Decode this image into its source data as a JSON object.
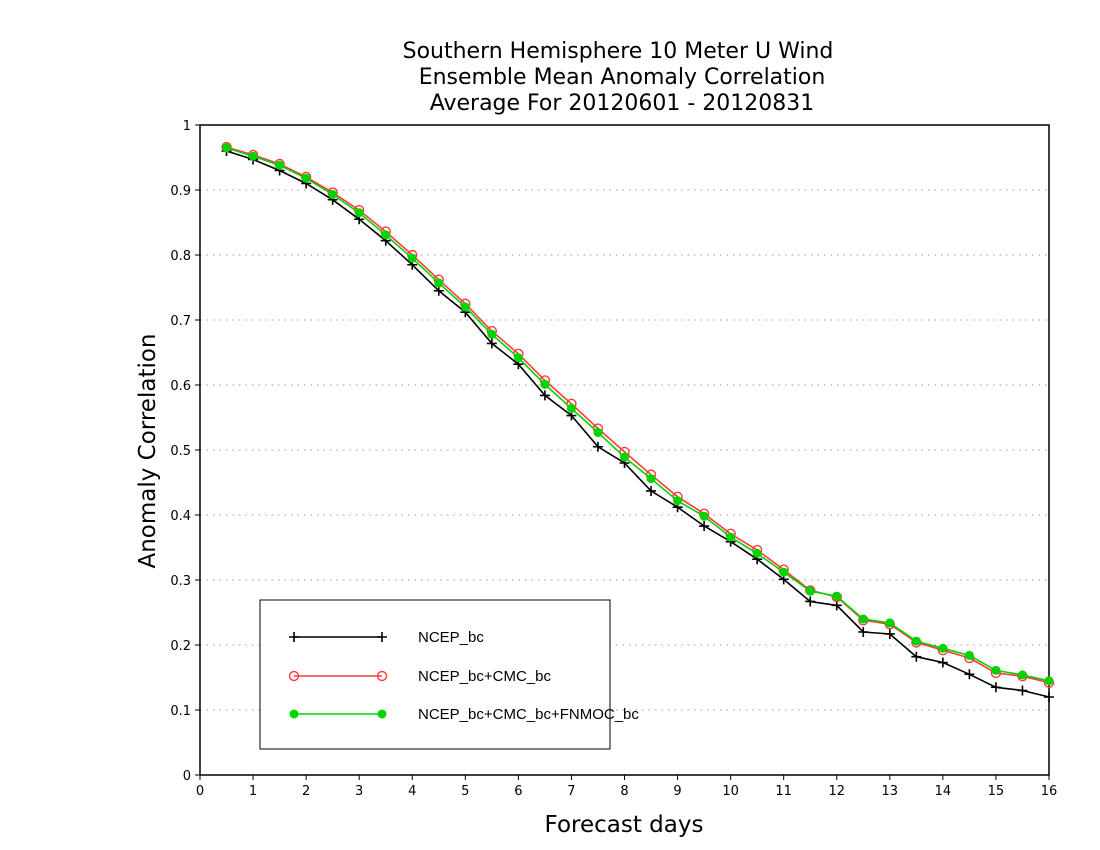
{
  "chart_data": {
    "type": "line",
    "title_lines": [
      "Southern Hemisphere 10 Meter U Wind",
      "Ensemble Mean Anomaly Correlation",
      "Average For 20120601 - 20120831"
    ],
    "xlabel": "Forecast days",
    "ylabel": "Anomaly Correlation",
    "xlim": [
      0,
      16
    ],
    "ylim": [
      0,
      1
    ],
    "x_ticks": [
      "0",
      "1",
      "2",
      "3",
      "4",
      "5",
      "6",
      "7",
      "8",
      "9",
      "10",
      "11",
      "12",
      "13",
      "14",
      "15",
      "16"
    ],
    "y_ticks": [
      "0",
      "0.1",
      "0.2",
      "0.3",
      "0.4",
      "0.5",
      "0.6",
      "0.7",
      "0.8",
      "0.9",
      "1"
    ],
    "grid": "dotted horizontal",
    "legend_position": "bottom-left",
    "x": [
      0.5,
      1,
      1.5,
      2,
      2.5,
      3,
      3.5,
      4,
      4.5,
      5,
      5.5,
      6,
      6.5,
      7,
      7.5,
      8,
      8.5,
      9,
      9.5,
      10,
      10.5,
      11,
      11.5,
      12,
      12.5,
      13,
      13.5,
      14,
      14.5,
      15,
      15.5,
      16
    ],
    "series": [
      {
        "name": "NCEP_bc",
        "color": "#000000",
        "marker": "plus",
        "values": [
          0.96,
          0.947,
          0.93,
          0.91,
          0.885,
          0.855,
          0.822,
          0.785,
          0.745,
          0.712,
          0.664,
          0.632,
          0.584,
          0.553,
          0.505,
          0.48,
          0.437,
          0.412,
          0.383,
          0.359,
          0.332,
          0.301,
          0.267,
          0.261,
          0.22,
          0.217,
          0.182,
          0.173,
          0.155,
          0.135,
          0.13,
          0.12
        ]
      },
      {
        "name": "NCEP_bc+CMC_bc",
        "color": "#ff3b3b",
        "marker": "open-circle",
        "values": [
          0.966,
          0.954,
          0.94,
          0.92,
          0.896,
          0.869,
          0.836,
          0.8,
          0.762,
          0.725,
          0.683,
          0.648,
          0.607,
          0.571,
          0.533,
          0.497,
          0.462,
          0.428,
          0.402,
          0.371,
          0.346,
          0.316,
          0.284,
          0.274,
          0.238,
          0.232,
          0.204,
          0.192,
          0.18,
          0.157,
          0.152,
          0.142
        ]
      },
      {
        "name": "NCEP_bc+CMC_bc+FNMOC_bc",
        "color": "#00d400",
        "marker": "filled-circle",
        "values": [
          0.965,
          0.952,
          0.938,
          0.918,
          0.893,
          0.865,
          0.831,
          0.795,
          0.757,
          0.72,
          0.678,
          0.642,
          0.601,
          0.564,
          0.527,
          0.489,
          0.456,
          0.422,
          0.398,
          0.366,
          0.341,
          0.312,
          0.283,
          0.275,
          0.24,
          0.234,
          0.206,
          0.195,
          0.184,
          0.161,
          0.154,
          0.145
        ]
      }
    ]
  }
}
